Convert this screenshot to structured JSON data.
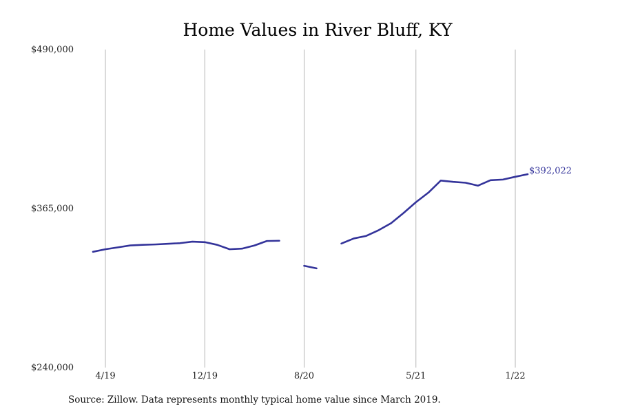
{
  "chart_data": {
    "type": "line",
    "title": "Home Values in River Bluff, KY",
    "xlabel": "",
    "ylabel": "",
    "ylim": [
      240000,
      490000
    ],
    "y_ticks": [
      {
        "value": 240000,
        "label": "$240,000"
      },
      {
        "value": 365000,
        "label": "$365,000"
      },
      {
        "value": 490000,
        "label": "$490,000"
      }
    ],
    "x_ticks": [
      {
        "date": "2019-04",
        "label": "4/19"
      },
      {
        "date": "2019-12",
        "label": "12/19"
      },
      {
        "date": "2020-08",
        "label": "8/20"
      },
      {
        "date": "2021-05",
        "label": "5/21"
      },
      {
        "date": "2022-01",
        "label": "1/22"
      }
    ],
    "grid": {
      "vertical": true,
      "horizontal": false
    },
    "legend": "none",
    "series": [
      {
        "color": "#33339a",
        "x": [
          "2019-03",
          "2019-04",
          "2019-05",
          "2019-06",
          "2019-07",
          "2019-08",
          "2019-09",
          "2019-10",
          "2019-11",
          "2019-12",
          "2020-01",
          "2020-02",
          "2020-03",
          "2020-04",
          "2020-05",
          "2020-06",
          "2020-07",
          "2020-08",
          "2020-09",
          "2020-10",
          "2020-11",
          "2020-12",
          "2021-01",
          "2021-02",
          "2021-03",
          "2021-04",
          "2021-05",
          "2021-06",
          "2021-07",
          "2021-08",
          "2021-09",
          "2021-10",
          "2021-11",
          "2021-12",
          "2022-01",
          "2022-02",
          "2022-03"
        ],
        "values": [
          331000,
          333000,
          334500,
          336000,
          336500,
          336800,
          337300,
          337800,
          339000,
          338600,
          336500,
          333000,
          333500,
          336000,
          339500,
          339700,
          null,
          320000,
          318000,
          null,
          337500,
          341500,
          343500,
          348000,
          353500,
          361500,
          370000,
          377500,
          387000,
          386000,
          385300,
          383000,
          387300,
          387800,
          390000,
          392022,
          null
        ]
      }
    ],
    "end_label": "$392,022"
  },
  "source": "Source: Zillow. Data represents monthly typical home value since March 2019."
}
